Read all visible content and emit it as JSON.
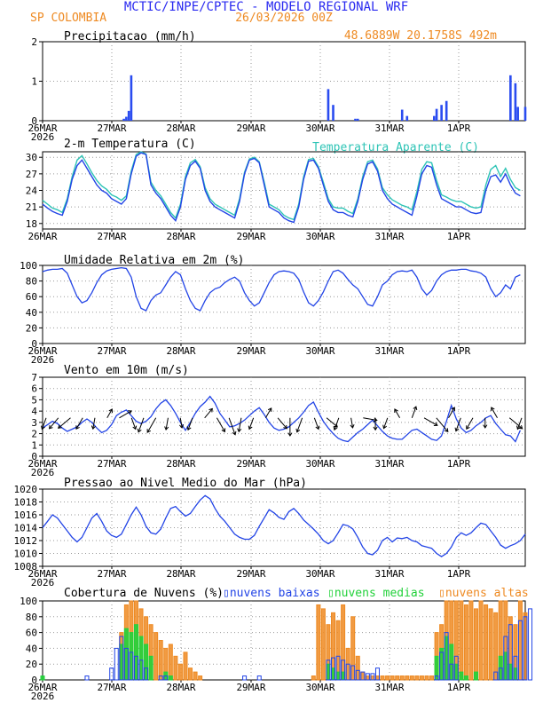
{
  "header": {
    "title": "MCTIC/INPE/CPTEC - MODELO REGIONAL WRF",
    "location": "SP COLOMBIA",
    "run": "26/03/2026 00Z",
    "coords": "48.6889W 20.1758S 492m"
  },
  "colors": {
    "title": "#2a2af0",
    "orange": "#ee8a22",
    "blue": "#2244e6",
    "cyan": "#2ec4b6",
    "green": "#22d13a",
    "grid": "#9a9a9a",
    "barBlue": "#2a4cf0"
  },
  "x_labels": [
    "26MAR",
    "27MAR",
    "28MAR",
    "29MAR",
    "30MAR",
    "31MAR",
    "1APR"
  ],
  "year_label": "2026",
  "chart_data": [
    {
      "type": "bar",
      "title": "Precipitacao (mm/h)",
      "ylim": [
        0,
        2
      ],
      "yticks": [
        "0",
        "1",
        "2"
      ],
      "x": [
        16.5,
        17,
        17.5,
        18,
        58,
        59,
        63.5,
        64,
        73,
        74,
        79.5,
        80,
        81,
        82,
        95,
        96,
        96.5,
        98
      ],
      "values": [
        0.05,
        0.1,
        0.25,
        1.15,
        0.8,
        0.4,
        0.05,
        0.05,
        0.28,
        0.12,
        0.12,
        0.3,
        0.4,
        0.5,
        1.15,
        0.95,
        0.35,
        0.35
      ]
    },
    {
      "type": "line",
      "title": "2-m Temperatura (C)",
      "legend": "Temperatura Aparente (C)",
      "ylim": [
        17,
        31
      ],
      "yticks": [
        "18",
        "21",
        "24",
        "27",
        "30"
      ],
      "series": [
        {
          "name": "Temperatura",
          "values": [
            21.5,
            20.8,
            20.2,
            19.8,
            19.5,
            22,
            26,
            28.5,
            29.5,
            28,
            26.5,
            25,
            24,
            23.5,
            22.5,
            22,
            21.5,
            22.5,
            27,
            30.2,
            30.8,
            30.5,
            25,
            23.5,
            22.5,
            21,
            19.5,
            18.5,
            21,
            26,
            28.5,
            29.3,
            28,
            24,
            22,
            21,
            20.5,
            20,
            19.5,
            19,
            22,
            27,
            29.5,
            29.8,
            29,
            25,
            21,
            20.5,
            20,
            19,
            18.5,
            18.2,
            21,
            26,
            29.3,
            29.5,
            28,
            25,
            22,
            20.5,
            20,
            20,
            19.5,
            19.2,
            22,
            26,
            28.8,
            29.2,
            27.5,
            24,
            22.5,
            21.5,
            21,
            20.5,
            20,
            19.5,
            23,
            27,
            28.5,
            28.2,
            25,
            22.5,
            22,
            21.5,
            21,
            21,
            20.5,
            20,
            19.8,
            20,
            24,
            26.5,
            26.8,
            25.5,
            27,
            25,
            23.5,
            23
          ]
        },
        {
          "name": "Temperatura Aparente",
          "values": [
            22.2,
            21.5,
            20.8,
            20.5,
            20,
            22.5,
            26.5,
            29.5,
            30.3,
            28.8,
            27.2,
            25.8,
            24.8,
            24.2,
            23.2,
            22.8,
            22.2,
            23,
            27.5,
            30.5,
            31,
            30.6,
            25.5,
            24,
            23,
            21.5,
            20,
            19,
            21.5,
            26.5,
            29,
            29.6,
            28.3,
            24.5,
            22.5,
            21.5,
            21,
            20.5,
            20,
            19.5,
            22.5,
            27.3,
            29.7,
            30,
            29.2,
            25.5,
            21.5,
            21,
            20.5,
            19.5,
            19,
            18.7,
            21.5,
            26.5,
            29.6,
            29.8,
            28.3,
            25.5,
            22.5,
            21,
            20.8,
            20.8,
            20.2,
            19.8,
            22.5,
            26.5,
            29.2,
            29.5,
            27.9,
            24.5,
            23.2,
            22.3,
            21.8,
            21.3,
            21,
            20.5,
            23.8,
            27.8,
            29.2,
            29,
            25.8,
            23.2,
            22.8,
            22.3,
            22,
            22,
            21.5,
            21,
            20.8,
            21,
            25,
            27.8,
            28.5,
            26.5,
            28,
            26,
            24.5,
            24
          ]
        }
      ]
    },
    {
      "type": "line",
      "title": "Umidade Relativa em 2m (%)",
      "ylim": [
        0,
        100
      ],
      "yticks": [
        "0",
        "20",
        "40",
        "60",
        "80",
        "100"
      ],
      "values": [
        92,
        94,
        95,
        95,
        96,
        90,
        75,
        60,
        52,
        55,
        65,
        78,
        88,
        93,
        95,
        96,
        97,
        96,
        85,
        60,
        45,
        42,
        55,
        62,
        65,
        75,
        85,
        92,
        88,
        70,
        55,
        45,
        42,
        55,
        65,
        70,
        72,
        78,
        82,
        85,
        80,
        65,
        55,
        48,
        52,
        65,
        78,
        88,
        92,
        93,
        92,
        90,
        82,
        66,
        52,
        48,
        55,
        66,
        80,
        92,
        94,
        90,
        82,
        75,
        70,
        60,
        50,
        48,
        60,
        75,
        80,
        88,
        92,
        93,
        92,
        94,
        85,
        70,
        62,
        68,
        80,
        88,
        92,
        94,
        94,
        95,
        95,
        93,
        92,
        90,
        85,
        70,
        60,
        65,
        75,
        70,
        85,
        88
      ]
    },
    {
      "type": "line",
      "title": "Vento em 10m (m/s)",
      "ylim": [
        0,
        7
      ],
      "yticks": [
        "0",
        "1",
        "2",
        "3",
        "4",
        "5",
        "6",
        "7"
      ],
      "values": [
        2.5,
        2.8,
        3.1,
        2.9,
        2.5,
        2.2,
        2.4,
        2.6,
        3.0,
        3.3,
        3.0,
        2.5,
        2.1,
        2.3,
        2.8,
        3.6,
        3.9,
        4.1,
        3.6,
        3.1,
        2.9,
        3.1,
        3.5,
        4.2,
        4.7,
        5.0,
        4.5,
        3.8,
        3.0,
        2.3,
        3.0,
        3.8,
        4.4,
        4.8,
        5.3,
        4.7,
        3.8,
        3.2,
        2.6,
        2.7,
        2.9,
        3.2,
        3.6,
        4.0,
        4.3,
        3.7,
        3.0,
        2.5,
        2.3,
        2.4,
        2.6,
        3.0,
        3.4,
        3.9,
        4.5,
        4.8,
        3.9,
        3.1,
        2.5,
        2.0,
        1.6,
        1.4,
        1.3,
        1.7,
        2.1,
        2.4,
        2.8,
        3.2,
        2.7,
        2.2,
        1.8,
        1.6,
        1.5,
        1.5,
        1.9,
        2.3,
        2.4,
        2.1,
        1.8,
        1.5,
        1.4,
        1.8,
        3.1,
        4.5,
        3.3,
        2.5,
        2.1,
        2.3,
        2.7,
        3.0,
        3.4,
        3.6,
        2.9,
        2.4,
        1.9,
        1.8,
        1.3,
        2.3
      ],
      "arrows": [
        {
          "dir": 200,
          "mag": 3.0
        },
        {
          "dir": 220,
          "mag": 3.5
        },
        {
          "dir": 230,
          "mag": 4.0
        },
        {
          "dir": 210,
          "mag": 3.2
        },
        {
          "dir": 190,
          "mag": 2.8
        },
        {
          "dir": 30,
          "mag": 2.5
        },
        {
          "dir": 60,
          "mag": 3.5
        },
        {
          "dir": 160,
          "mag": 3.0
        },
        {
          "dir": 200,
          "mag": 3.8
        },
        {
          "dir": 210,
          "mag": 4.2
        },
        {
          "dir": 190,
          "mag": 3.0
        },
        {
          "dir": 170,
          "mag": 2.5
        },
        {
          "dir": 200,
          "mag": 3.2
        },
        {
          "dir": 40,
          "mag": 3.0
        },
        {
          "dir": 150,
          "mag": 4.0
        },
        {
          "dir": 160,
          "mag": 4.5
        },
        {
          "dir": 190,
          "mag": 3.5
        },
        {
          "dir": 200,
          "mag": 3.0
        },
        {
          "dir": 30,
          "mag": 2.8
        },
        {
          "dir": 140,
          "mag": 3.5
        },
        {
          "dir": 180,
          "mag": 4.5
        },
        {
          "dir": 200,
          "mag": 3.8
        },
        {
          "dir": 160,
          "mag": 3.0
        },
        {
          "dir": 130,
          "mag": 3.5
        },
        {
          "dir": 200,
          "mag": 3.2
        },
        {
          "dir": 170,
          "mag": 2.5
        },
        {
          "dir": 100,
          "mag": 3.5
        },
        {
          "dir": 180,
          "mag": 3.0
        },
        {
          "dir": 200,
          "mag": 2.8
        },
        {
          "dir": 330,
          "mag": 2.5
        },
        {
          "dir": 20,
          "mag": 3.0
        },
        {
          "dir": 120,
          "mag": 3.8
        },
        {
          "dir": 140,
          "mag": 4.5
        },
        {
          "dir": 30,
          "mag": 3.0
        },
        {
          "dir": 200,
          "mag": 3.5
        },
        {
          "dir": 210,
          "mag": 3.2
        },
        {
          "dir": 180,
          "mag": 2.5
        },
        {
          "dir": 330,
          "mag": 3.0
        },
        {
          "dir": 130,
          "mag": 4.2
        },
        {
          "dir": 200,
          "mag": 3.0
        }
      ]
    },
    {
      "type": "line",
      "title": "Pressao ao Nivel Medio do Mar (hPa)",
      "ylim": [
        1008,
        1020
      ],
      "yticks": [
        "1008",
        "1010",
        "1012",
        "1014",
        "1016",
        "1018",
        "1020"
      ],
      "values": [
        1014.0,
        1015.0,
        1016.0,
        1015.5,
        1014.5,
        1013.5,
        1012.5,
        1011.8,
        1012.5,
        1014.0,
        1015.5,
        1016.2,
        1015.0,
        1013.5,
        1012.8,
        1012.5,
        1013.0,
        1014.5,
        1016.0,
        1017.2,
        1016.0,
        1014.2,
        1013.2,
        1013.0,
        1013.8,
        1015.5,
        1017.0,
        1017.3,
        1016.5,
        1015.8,
        1016.2,
        1017.3,
        1018.3,
        1019.0,
        1018.5,
        1017.0,
        1015.8,
        1015.0,
        1014.0,
        1013.0,
        1012.5,
        1012.2,
        1012.2,
        1012.8,
        1014.2,
        1015.5,
        1016.8,
        1016.3,
        1015.6,
        1015.3,
        1016.5,
        1017.0,
        1016.2,
        1015.2,
        1014.5,
        1013.8,
        1013.0,
        1012.0,
        1011.5,
        1012.0,
        1013.2,
        1014.5,
        1014.3,
        1013.8,
        1012.5,
        1011.0,
        1010.0,
        1009.8,
        1010.5,
        1012.0,
        1012.5,
        1011.8,
        1012.4,
        1012.3,
        1012.5,
        1012.0,
        1011.8,
        1011.2,
        1011.0,
        1010.8,
        1010.0,
        1009.5,
        1010.0,
        1011.0,
        1012.5,
        1013.2,
        1012.8,
        1013.2,
        1014.0,
        1014.7,
        1014.5,
        1013.5,
        1012.5,
        1011.3,
        1010.8,
        1011.2,
        1011.5,
        1012.0,
        1013.0
      ]
    },
    {
      "type": "bar",
      "title": "Cobertura de Nuvens (%)",
      "ylim": [
        0,
        100
      ],
      "yticks": [
        "0",
        "20",
        "40",
        "60",
        "80",
        "100"
      ],
      "series": [
        {
          "name": "nuvens baixas",
          "x": [
            9,
            14,
            15,
            16,
            17,
            18,
            19,
            20,
            21,
            24,
            25,
            41,
            44,
            58,
            59,
            60,
            61,
            62,
            63,
            64,
            65,
            66,
            67,
            68,
            80,
            81,
            82,
            83,
            84,
            92,
            93,
            94,
            95,
            96,
            97,
            98,
            99
          ],
          "values": [
            5,
            15,
            40,
            55,
            40,
            35,
            30,
            25,
            15,
            5,
            5,
            5,
            5,
            25,
            28,
            30,
            25,
            20,
            18,
            12,
            10,
            8,
            8,
            15,
            5,
            35,
            60,
            20,
            30,
            10,
            15,
            55,
            70,
            30,
            75,
            80,
            90
          ]
        },
        {
          "name": "nuvens medias",
          "x": [
            0,
            16,
            17,
            18,
            19,
            20,
            21,
            22,
            25,
            26,
            58,
            59,
            60,
            61,
            80,
            81,
            82,
            83,
            84,
            85,
            86,
            88,
            93,
            94,
            95,
            96
          ],
          "values": [
            5,
            45,
            65,
            60,
            70,
            55,
            45,
            30,
            10,
            5,
            20,
            15,
            10,
            10,
            30,
            40,
            55,
            45,
            20,
            10,
            5,
            10,
            30,
            35,
            20,
            15
          ]
        },
        {
          "name": "nuvens altas",
          "x": [
            16,
            17,
            18,
            19,
            20,
            21,
            22,
            23,
            24,
            25,
            26,
            27,
            28,
            29,
            30,
            31,
            32,
            55,
            56,
            57,
            58,
            59,
            60,
            61,
            62,
            63,
            64,
            65,
            66,
            67,
            68,
            69,
            70,
            71,
            72,
            73,
            74,
            75,
            76,
            77,
            78,
            79,
            80,
            81,
            82,
            83,
            84,
            85,
            86,
            87,
            88,
            89,
            90,
            91,
            92,
            93,
            94,
            95,
            96,
            97,
            98
          ],
          "values": [
            60,
            95,
            100,
            100,
            90,
            80,
            70,
            60,
            50,
            40,
            45,
            30,
            20,
            35,
            15,
            10,
            5,
            5,
            95,
            90,
            70,
            85,
            75,
            95,
            40,
            80,
            30,
            10,
            5,
            5,
            5,
            5,
            5,
            5,
            5,
            5,
            5,
            5,
            5,
            5,
            5,
            5,
            60,
            70,
            100,
            100,
            100,
            100,
            95,
            100,
            90,
            100,
            95,
            90,
            85,
            100,
            100,
            80,
            70,
            100,
            85
          ]
        }
      ]
    }
  ]
}
